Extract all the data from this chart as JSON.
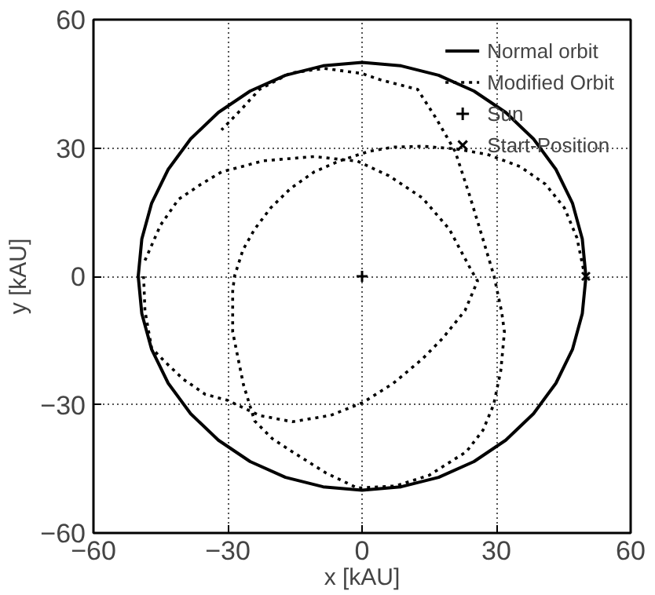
{
  "chart_data": {
    "type": "line",
    "xlabel": "x [kAU]",
    "ylabel": "y [kAU]",
    "xlim": [
      -60,
      60
    ],
    "ylim": [
      -60,
      60
    ],
    "xticks": [
      -60,
      -30,
      0,
      30,
      60
    ],
    "yticks": [
      -60,
      -30,
      0,
      30,
      60
    ],
    "grid": true,
    "legend": "top right",
    "series": [
      {
        "name": "Normal orbit",
        "color": "#000000",
        "line_style": "solid",
        "marker": "none",
        "x": [
          50,
          49.2,
          47,
          43.3,
          38.3,
          32.1,
          25,
          17.1,
          8.7,
          0,
          -8.7,
          -17.1,
          -25,
          -32.1,
          -38.3,
          -43.3,
          -47,
          -49.2,
          -50,
          -49.2,
          -47,
          -43.3,
          -38.3,
          -32.1,
          -25,
          -17.1,
          -8.7,
          0,
          8.7,
          17.1,
          25,
          32.1,
          38.3,
          43.3,
          47,
          49.2,
          50
        ],
        "values": [
          0,
          8.7,
          17.1,
          25,
          32.1,
          38.3,
          43.3,
          47,
          49.2,
          50,
          49.2,
          47,
          43.3,
          38.3,
          32.1,
          25,
          17.1,
          8.7,
          0,
          -8.7,
          -17.1,
          -25,
          -32.1,
          -38.3,
          -43.3,
          -47,
          -49.2,
          -50,
          -49.2,
          -47,
          -43.3,
          -38.3,
          -32.1,
          -25,
          -17.1,
          -8.7,
          -0.2
        ]
      },
      {
        "name": "Modified Orbit",
        "color": "#000000",
        "line_style": "dotted",
        "marker": "none",
        "x": [
          50,
          49.5,
          48,
          45.2,
          41,
          35.4,
          28,
          20.8,
          13.5,
          7,
          1.5,
          -5,
          -10.7,
          -16,
          -20.4,
          -24,
          -26.6,
          -28.5,
          -28.9,
          -28.9,
          -26.5,
          -24,
          -20,
          -15.6,
          -8,
          -1,
          7.5,
          15,
          23.3,
          27,
          29.4,
          31,
          31.8,
          31.2,
          29.5,
          27,
          24,
          20.8,
          16.5,
          12.4,
          3.9,
          0,
          -8.4,
          -16,
          -22.9,
          -27,
          -31.4
        ],
        "values": [
          0,
          1.4,
          9,
          16,
          21.5,
          25.6,
          28.5,
          29.8,
          30.4,
          30.2,
          29.2,
          27,
          24.4,
          20.5,
          16,
          11,
          6.2,
          0,
          -3.5,
          -13,
          -25.3,
          -33.8,
          -38,
          -41,
          -46,
          -49.5,
          -49,
          -46.5,
          -41,
          -36,
          -30,
          -22,
          -13,
          -8.4,
          0,
          8.7,
          19,
          29.2,
          37,
          43.7,
          46,
          47.4,
          48.6,
          47.5,
          43.7,
          39,
          34.2
        ]
      },
      {
        "color": "#000000",
        "line_style": "dotted",
        "marker": "none",
        "x": [
          -48.5,
          -45,
          -41,
          -36,
          -31.4,
          -22,
          -10.7,
          -1,
          6,
          13.5,
          19.5,
          24.4,
          25.8,
          23,
          18,
          13.5,
          7,
          0.2,
          -7,
          -15.6,
          -23,
          -30,
          -35,
          -40,
          -44,
          -47,
          -48.5,
          -48.8
        ],
        "values": [
          3.7,
          12,
          18,
          21.5,
          24.4,
          27,
          28,
          26.9,
          23.5,
          18.3,
          11,
          1.4,
          -1.1,
          -8,
          -14.5,
          -19.3,
          -25,
          -29.5,
          -32.5,
          -34,
          -32.5,
          -29,
          -27.6,
          -24,
          -20,
          -16.8,
          -8,
          0
        ]
      },
      {
        "name": "Sun",
        "type": "scatter",
        "color": "#000000",
        "marker": "cross",
        "x": [
          0
        ],
        "values": [
          0
        ]
      },
      {
        "name": "Start-Position",
        "type": "scatter",
        "color": "#000000",
        "marker": "x",
        "x": [
          50
        ],
        "values": [
          0
        ]
      }
    ]
  }
}
